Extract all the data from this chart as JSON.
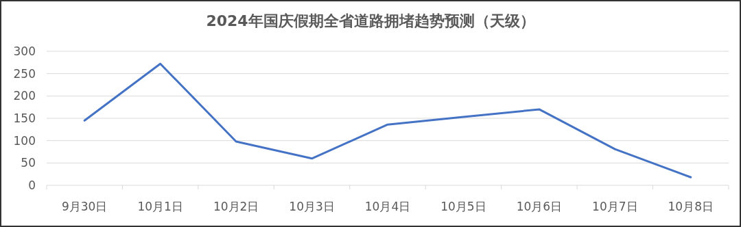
{
  "chart_data": {
    "type": "line",
    "title": "2024年国庆假期全省道路拥堵趋势预测（天级）",
    "categories": [
      "9月30日",
      "10月1日",
      "10月2日",
      "10月3日",
      "10月4日",
      "10月5日",
      "10月6日",
      "10月7日",
      "10月8日"
    ],
    "series": [
      {
        "color": "#4472c4",
        "values": [
          145,
          272,
          98,
          60,
          136,
          153,
          170,
          81,
          18
        ]
      }
    ],
    "ylim": [
      0,
      300
    ],
    "yticks": [
      0,
      50,
      100,
      150,
      200,
      250,
      300
    ],
    "grid": "y",
    "marker": "none",
    "line_style": "solid"
  }
}
